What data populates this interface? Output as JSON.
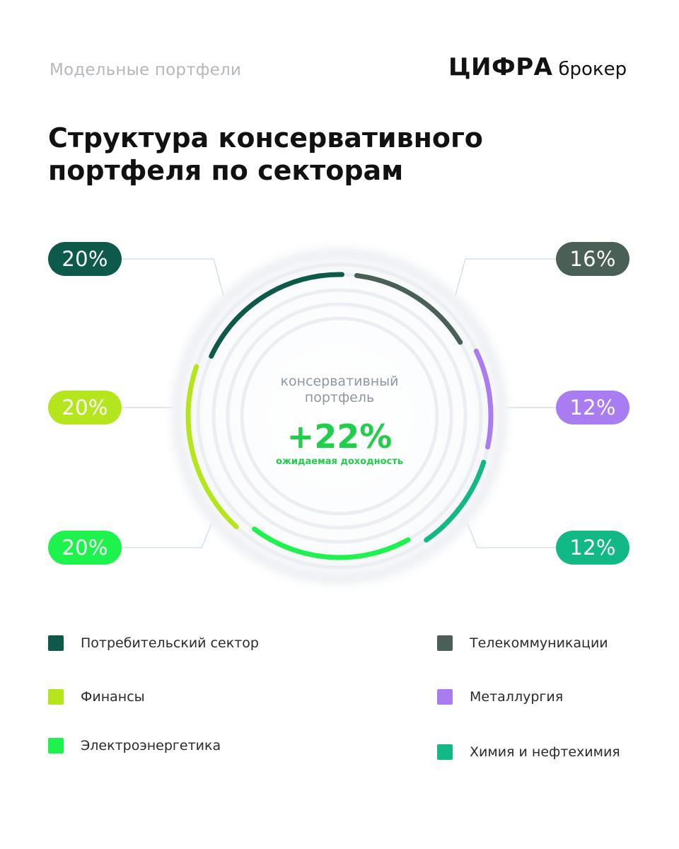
{
  "header": {
    "subtitle": "Модельные портфели",
    "logo_main": "ЦИФРА",
    "logo_sub": "брокер"
  },
  "title_lines": [
    "Структура консервативного",
    "портфеля по секторам"
  ],
  "center": {
    "label_lines": [
      "консервативный",
      "портфель"
    ],
    "value": "+22%",
    "caption": "ожидаемая доходность"
  },
  "chart_data": {
    "type": "pie",
    "title": "Структура консервативного портфеля по секторам",
    "categories": [
      "Потребительский сектор",
      "Финансы",
      "Электроэнергетика",
      "Телекоммуникации",
      "Металлургия",
      "Химия и нефтехимия"
    ],
    "values": [
      20,
      20,
      20,
      16,
      12,
      12
    ],
    "labels": [
      "20%",
      "20%",
      "20%",
      "16%",
      "12%",
      "12%"
    ],
    "colors": [
      "#0e5a4a",
      "#b5e61d",
      "#1df24d",
      "#4a5f56",
      "#a97cf2",
      "#12b886"
    ],
    "legend": "bottom"
  }
}
